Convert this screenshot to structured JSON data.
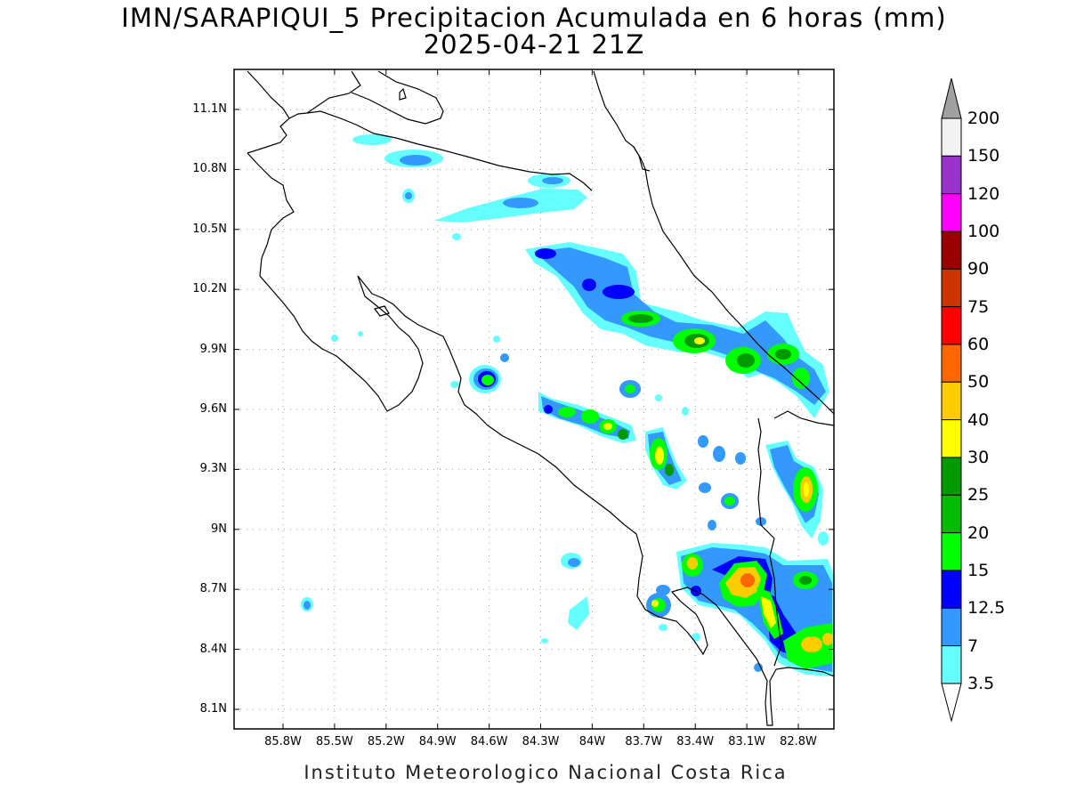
{
  "title": {
    "line1": "IMN/SARAPIQUI_5 Precipitacion Acumulada en 6 horas (mm)",
    "line2": "2025-04-21 21Z"
  },
  "footer": "Instituto Meteorologico Nacional Costa Rica",
  "map": {
    "lat_range": [
      8.0,
      11.3
    ],
    "lon_range": [
      -86.0,
      -83.0
    ],
    "grid": "dotted",
    "lat_ticks": [
      {
        "label": "11.1N",
        "value": 11.1
      },
      {
        "label": "10.8N",
        "value": 10.8
      },
      {
        "label": "10.5N",
        "value": 10.5
      },
      {
        "label": "10.2N",
        "value": 10.2
      },
      {
        "label": "9.9N",
        "value": 9.9
      },
      {
        "label": "9.6N",
        "value": 9.6
      },
      {
        "label": "9.3N",
        "value": 9.3
      },
      {
        "label": "9N",
        "value": 9.0
      },
      {
        "label": "8.7N",
        "value": 8.7
      },
      {
        "label": "8.4N",
        "value": 8.4
      },
      {
        "label": "8.1N",
        "value": 8.1
      }
    ],
    "lon_ticks": [
      {
        "label": "85.8W",
        "value": -85.8
      },
      {
        "label": "85.5W",
        "value": -85.5
      },
      {
        "label": "85.2W",
        "value": -85.2
      },
      {
        "label": "84.9W",
        "value": -84.9
      },
      {
        "label": "84.6W",
        "value": -84.6
      },
      {
        "label": "84.3W",
        "value": -84.3
      },
      {
        "label": "84W",
        "value": -84.0
      },
      {
        "label": "83.7W",
        "value": -83.7
      },
      {
        "label": "83.4W",
        "value": -83.4
      },
      {
        "label": "83.1W",
        "value": -83.1
      },
      {
        "label": "82.8W",
        "value": -82.8
      }
    ]
  },
  "colorbar": {
    "labels": [
      "200",
      "150",
      "120",
      "100",
      "90",
      "75",
      "60",
      "50",
      "40",
      "30",
      "25",
      "20",
      "15",
      "12.5",
      "7",
      "3.5"
    ],
    "colors": [
      "#f2f2f2",
      "#9933cc",
      "#ff00ff",
      "#990000",
      "#cc3300",
      "#ff0000",
      "#ff6600",
      "#ffcc00",
      "#ffff00",
      "#009900",
      "#00bb00",
      "#00ff00",
      "#0000ff",
      "#3399ff",
      "#66ffff"
    ],
    "top_arrow_color": "#a0a0a0",
    "bottom_arrow_color": "#ffffff"
  }
}
